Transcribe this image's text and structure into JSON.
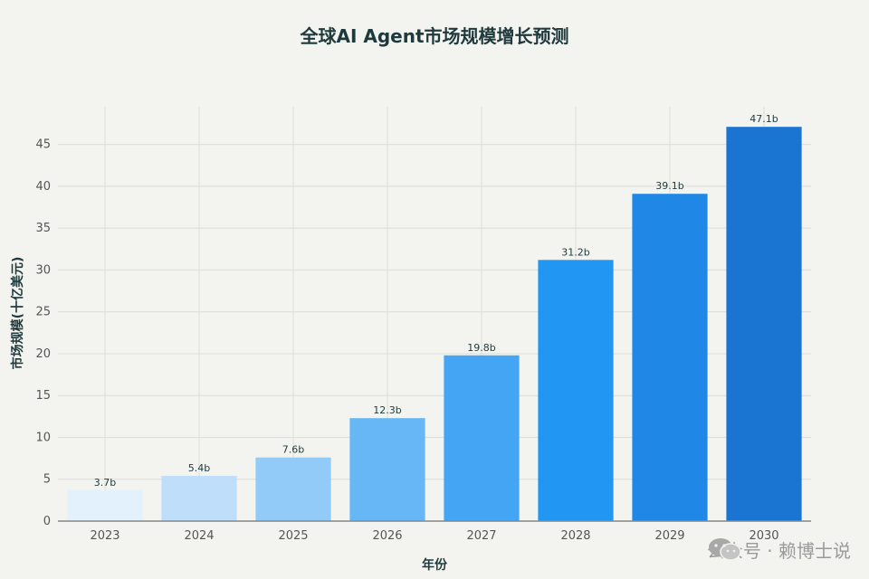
{
  "chart_data": {
    "type": "bar",
    "title": "全球AI Agent市场规模增长预测",
    "xlabel": "年份",
    "ylabel": "市场规模(十亿美元)",
    "categories": [
      "2023",
      "2024",
      "2025",
      "2026",
      "2027",
      "2028",
      "2029",
      "2030"
    ],
    "values": [
      3.7,
      5.4,
      7.6,
      12.3,
      19.8,
      31.2,
      39.1,
      47.1
    ],
    "data_labels": [
      "3.7b",
      "5.4b",
      "7.6b",
      "12.3b",
      "19.8b",
      "31.2b",
      "39.1b",
      "47.1b"
    ],
    "colors": [
      "#e3f1fc",
      "#bfdefa",
      "#92cbf8",
      "#67b6f6",
      "#43a5f3",
      "#2196f3",
      "#1f88e6",
      "#1a74d2"
    ],
    "yticks": [
      0,
      5,
      10,
      15,
      20,
      25,
      30,
      35,
      40,
      45
    ],
    "ylim": [
      0,
      49.5
    ],
    "grid": true,
    "legend": "none"
  },
  "watermark": {
    "icon": "wechat-icon",
    "text": "公众号 · 赖博士说"
  }
}
